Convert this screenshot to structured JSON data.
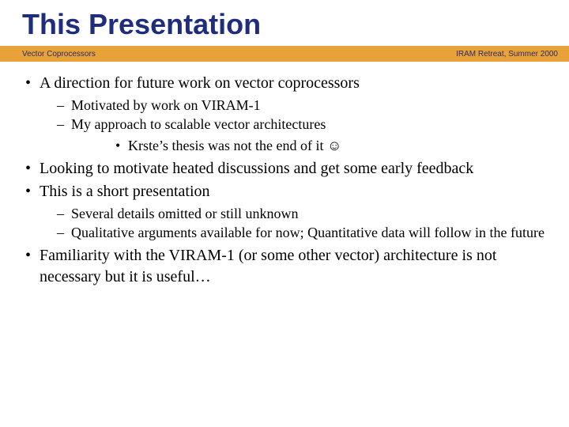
{
  "title": "This Presentation",
  "bar": {
    "left": "Vector Coprocessors",
    "right": "IRAM Retreat, Summer 2000"
  },
  "bullets": {
    "b1": "A direction for future work on vector coprocessors",
    "b1a": "Motivated by work on VIRAM-1",
    "b1b": "My approach to scalable vector architectures",
    "b1b1": "Krste’s thesis was not the end of it ☺",
    "b2": "Looking to motivate heated discussions and get some early feedback",
    "b3": "This is a short presentation",
    "b3a": "Several details omitted or still unknown",
    "b3b": "Qualitative arguments available for now; Quantitative data will follow in the future",
    "b4": "Familiarity with the VIRAM-1 (or some other vector) architecture is not necessary but it is useful…"
  },
  "colors": {
    "title": "#1f2d7a",
    "bar_bg": "#e8a23a",
    "bar_text": "#2a2a6a",
    "body_text": "#000000",
    "background": "#ffffff"
  }
}
